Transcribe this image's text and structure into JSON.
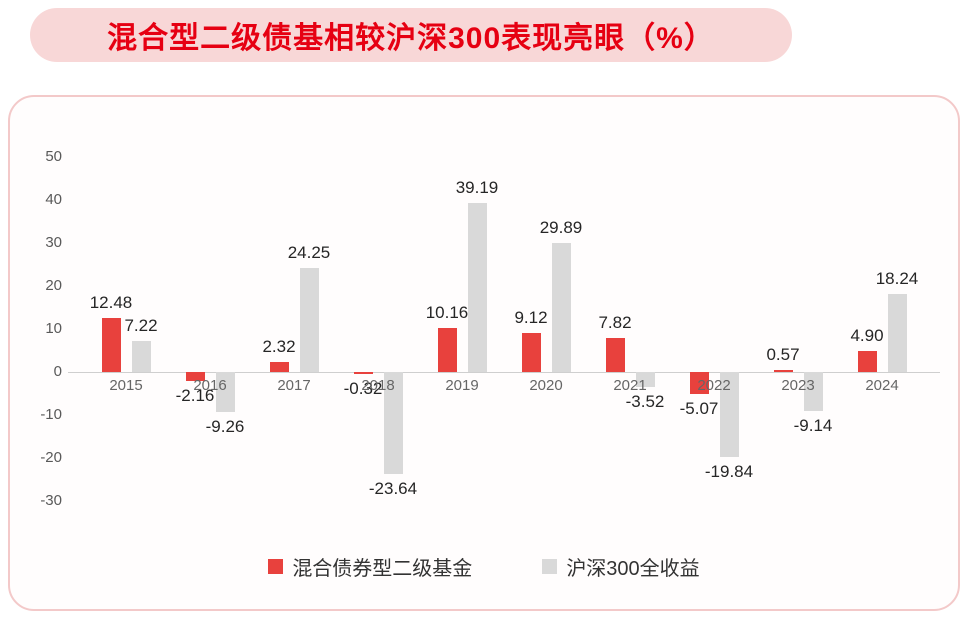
{
  "title": "混合型二级债基相较沪深300表现亮眼（%）",
  "colors": {
    "accent_red": "#e60012",
    "bar_red": "#e8413d",
    "bar_gray": "#d9d9d9",
    "banner_bg": "#f8d7d7",
    "card_border": "#f3c9c9",
    "axis_text": "#595959",
    "value_text": "#262626"
  },
  "chart_data": {
    "type": "bar",
    "categories": [
      "2015",
      "2016",
      "2017",
      "2018",
      "2019",
      "2020",
      "2021",
      "2022",
      "2023",
      "2024"
    ],
    "series": [
      {
        "name": "混合债券型二级基金",
        "color": "#e8413d",
        "values": [
          12.48,
          -2.16,
          2.32,
          -0.32,
          10.16,
          9.12,
          7.82,
          -5.07,
          0.57,
          4.9
        ]
      },
      {
        "name": "沪深300全收益",
        "color": "#d9d9d9",
        "values": [
          7.22,
          -9.26,
          24.25,
          -23.64,
          39.19,
          29.89,
          -3.52,
          -19.84,
          -9.14,
          18.24
        ]
      }
    ],
    "title": "混合型二级债基相较沪深300表现亮眼（%）",
    "xlabel": "",
    "ylabel": "",
    "ylim": [
      -30,
      50
    ],
    "yticks": [
      50,
      40,
      30,
      20,
      10,
      0,
      -10,
      -20,
      -30
    ],
    "grid": false,
    "legend_position": "bottom",
    "value_labels": true
  },
  "legend": {
    "items": [
      {
        "label": "混合债券型二级基金",
        "color": "#e8413d"
      },
      {
        "label": "沪深300全收益",
        "color": "#d9d9d9"
      }
    ]
  }
}
